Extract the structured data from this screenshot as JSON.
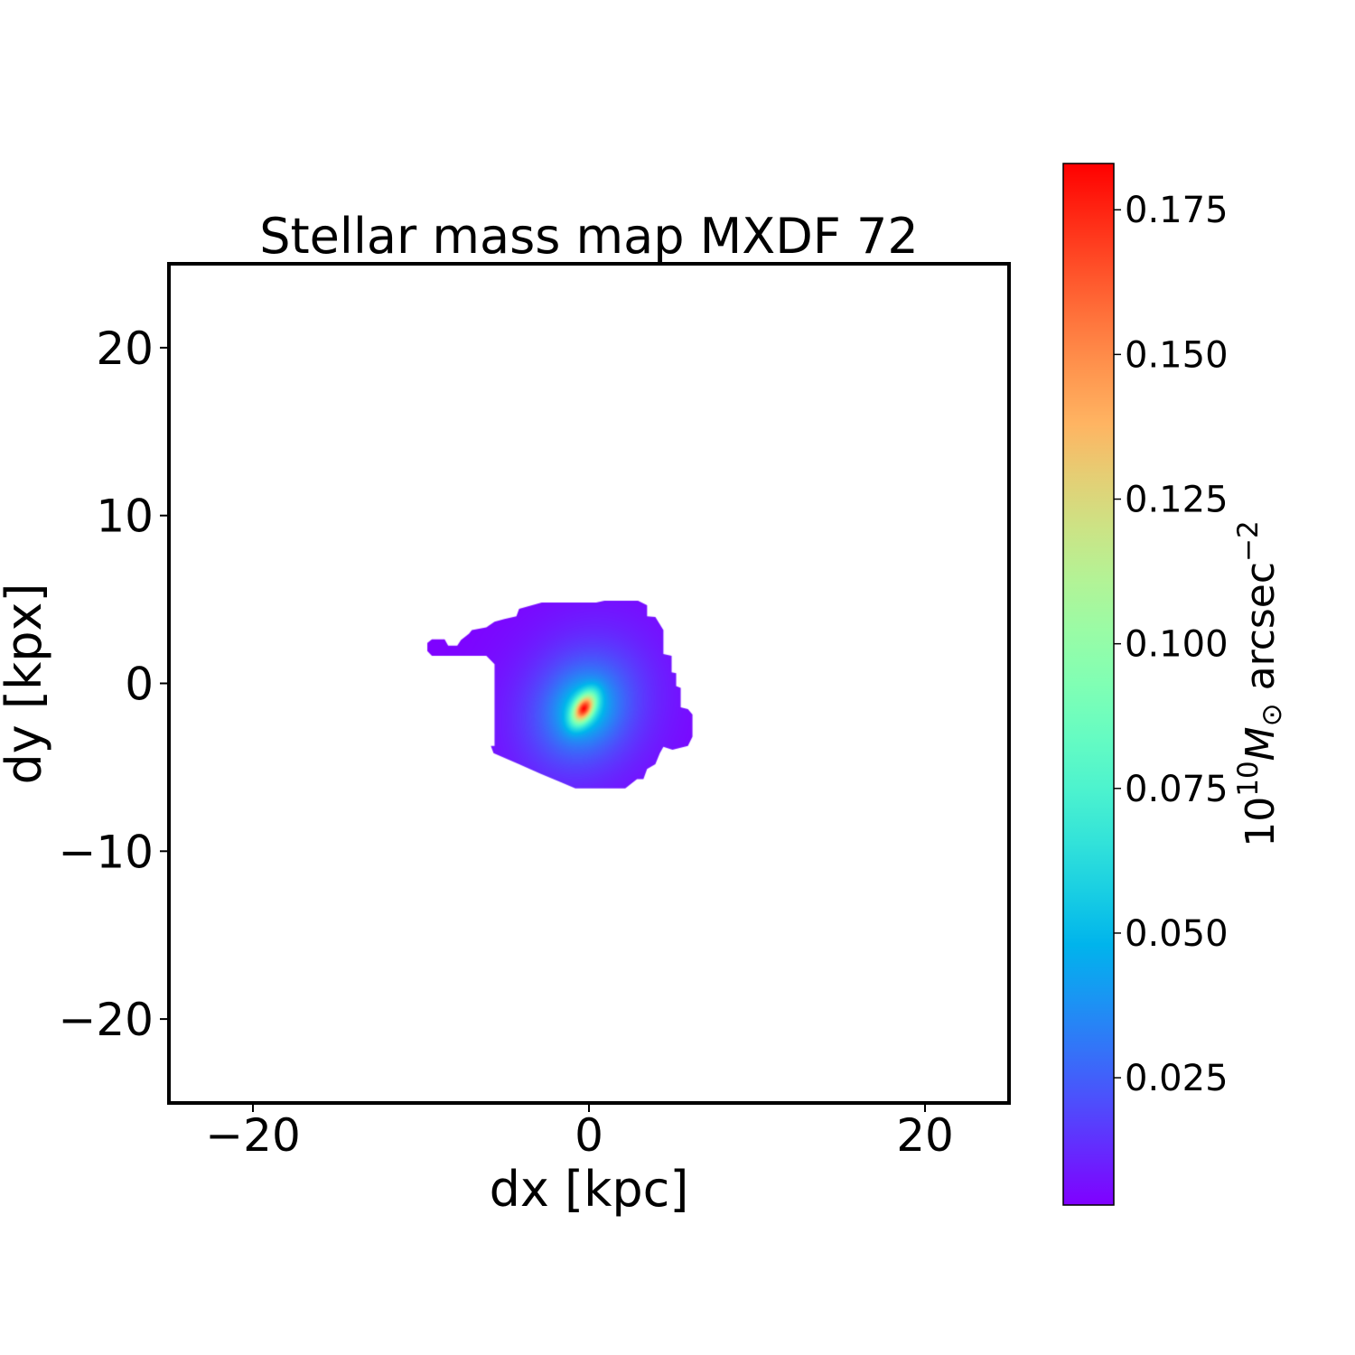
{
  "chart_data": {
    "type": "heatmap",
    "title": "Stellar mass map MXDF 72",
    "xlabel": "dx [kpc]",
    "ylabel": "dy [kpx]",
    "xlim": [
      -25,
      25
    ],
    "ylim": [
      -25,
      25
    ],
    "xticks": [
      -20,
      0,
      20
    ],
    "xtick_labels": [
      "−20",
      "0",
      "20"
    ],
    "yticks": [
      20,
      10,
      0,
      -10,
      -20
    ],
    "ytick_labels": [
      "20",
      "10",
      "0",
      "−10",
      "−20"
    ],
    "grid": false,
    "colormap": "rainbow",
    "colorbar": {
      "label": "10^10 M_⊙ arcsec^-2",
      "label_base": "10",
      "label_exp": "10",
      "label_symbol": "M",
      "label_sub": "⊙",
      "label_unit": "arcsec",
      "label_unit_exp": "−2",
      "range": [
        0.003,
        0.183
      ],
      "ticks": [
        0.025,
        0.05,
        0.075,
        0.1,
        0.125,
        0.15,
        0.175
      ],
      "tick_labels": [
        "0.025",
        "0.050",
        "0.075",
        "0.100",
        "0.125",
        "0.150",
        "0.175"
      ]
    },
    "peak": {
      "dx": -0.3,
      "dy": -1.5,
      "value": 0.183
    },
    "mask_outline_kpc": [
      [
        -9.62,
        2.41
      ],
      [
        -9.35,
        2.63
      ],
      [
        -8.59,
        2.63
      ],
      [
        -8.38,
        2.25
      ],
      [
        -7.84,
        2.25
      ],
      [
        -7.62,
        2.58
      ],
      [
        -7.14,
        2.96
      ],
      [
        -6.97,
        3.18
      ],
      [
        -6.11,
        3.34
      ],
      [
        -5.62,
        3.67
      ],
      [
        -5.03,
        3.84
      ],
      [
        -4.32,
        4.0
      ],
      [
        -4.16,
        4.44
      ],
      [
        -2.81,
        4.82
      ],
      [
        0.43,
        4.82
      ],
      [
        0.92,
        4.93
      ],
      [
        2.92,
        4.93
      ],
      [
        3.46,
        4.66
      ],
      [
        3.46,
        4.0
      ],
      [
        3.95,
        3.95
      ],
      [
        4.43,
        3.18
      ],
      [
        4.43,
        1.75
      ],
      [
        4.92,
        1.64
      ],
      [
        4.92,
        0.66
      ],
      [
        5.19,
        0.6
      ],
      [
        5.19,
        -0.16
      ],
      [
        5.46,
        -0.27
      ],
      [
        5.46,
        -1.42
      ],
      [
        5.89,
        -1.53
      ],
      [
        6.16,
        -1.86
      ],
      [
        6.16,
        -3.18
      ],
      [
        5.89,
        -3.73
      ],
      [
        4.97,
        -3.95
      ],
      [
        4.43,
        -3.78
      ],
      [
        4.22,
        -4.16
      ],
      [
        3.95,
        -4.82
      ],
      [
        3.46,
        -5.1
      ],
      [
        3.24,
        -5.7
      ],
      [
        2.86,
        -5.7
      ],
      [
        2.16,
        -6.25
      ],
      [
        -0.81,
        -6.25
      ],
      [
        -1.73,
        -5.86
      ],
      [
        -2.92,
        -5.37
      ],
      [
        -4.16,
        -4.82
      ],
      [
        -5.68,
        -4.16
      ],
      [
        -5.84,
        -3.73
      ],
      [
        -5.62,
        -3.73
      ],
      [
        -5.62,
        1.15
      ],
      [
        -6.11,
        1.64
      ],
      [
        -9.35,
        1.64
      ],
      [
        -9.62,
        1.92
      ]
    ]
  }
}
